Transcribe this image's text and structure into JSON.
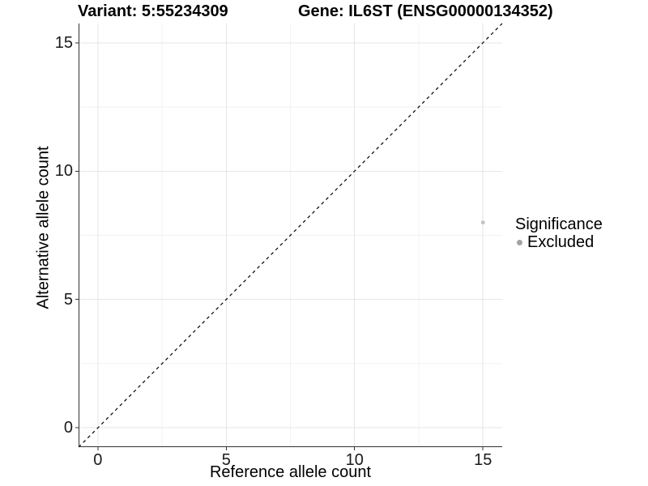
{
  "chart_data": {
    "type": "scatter",
    "title_left": "Variant: 5:55234309",
    "title_right": "Gene: IL6ST (ENSG00000134352)",
    "xlabel": "Reference allele count",
    "ylabel": "Alternative allele count",
    "xlim": [
      -0.75,
      15.75
    ],
    "ylim": [
      -0.75,
      15.75
    ],
    "major_ticks": [
      0,
      5,
      10,
      15
    ],
    "tick_labels": [
      "0",
      "5",
      "10",
      "15"
    ],
    "minor_ticks": [
      2.5,
      7.5,
      12.5
    ],
    "grid": {
      "major_color": "#e6e6e6",
      "minor_color": "#f2f2f2",
      "background": "#ffffff"
    },
    "axis": {
      "line_color": "#333333",
      "tick_color": "#333333",
      "tick_length": 4
    },
    "identity_line": {
      "style": "dashed",
      "color": "#000000",
      "from": [
        -0.75,
        -0.75
      ],
      "to": [
        15.75,
        15.75
      ]
    },
    "points": [
      {
        "x": 15,
        "y": 8,
        "significance": "Excluded",
        "color": "#c4c4c4",
        "radius": 2.5
      }
    ],
    "legend": {
      "title": "Significance",
      "position": "right",
      "items": [
        {
          "label": "Excluded",
          "color": "#a3a3a3",
          "marker": "point-icon"
        }
      ]
    }
  }
}
